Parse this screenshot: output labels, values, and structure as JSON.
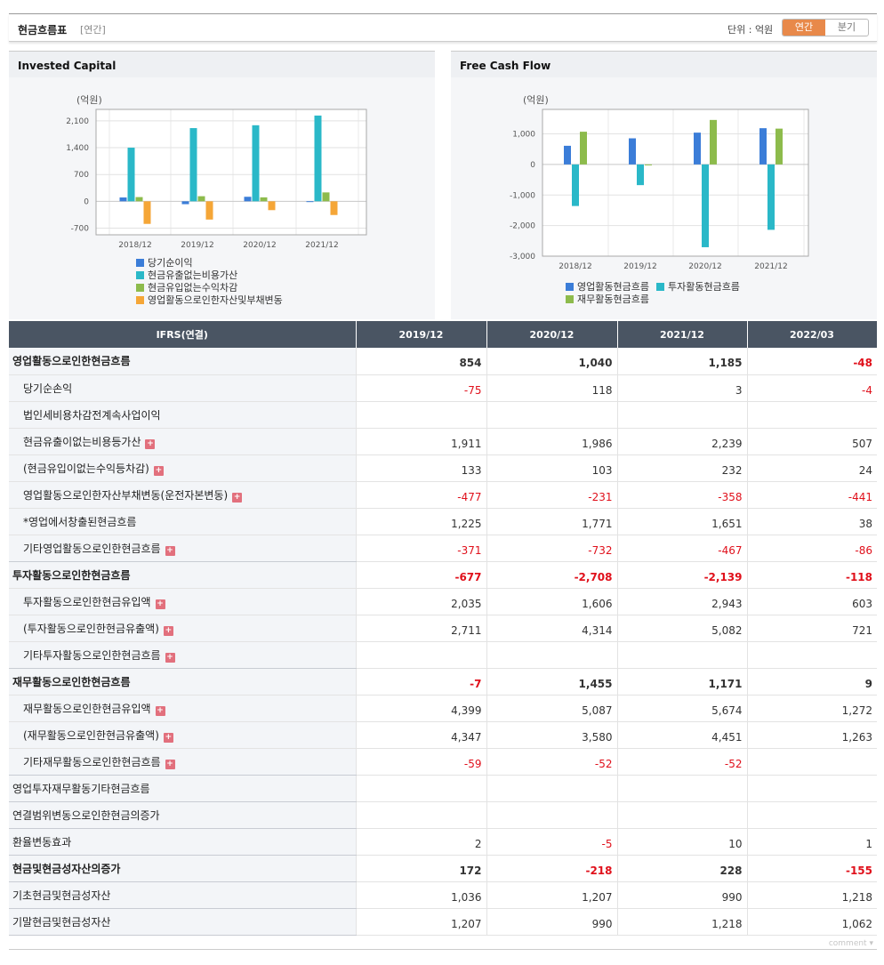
{
  "header": {
    "title": "현금흐름표",
    "subtitle": "[연간]",
    "unit": "단위 : 억원",
    "tab_annual": "연간",
    "tab_quarter": "분기"
  },
  "charts": [
    {
      "panel_title": "Invested Capital",
      "chart_data": {
        "type": "bar",
        "unit_label": "(억원)",
        "categories": [
          "2018/12",
          "2019/12",
          "2020/12",
          "2021/12"
        ],
        "ylim": [
          -875,
          2400
        ],
        "yticks": [
          -700,
          0,
          700,
          1400,
          2100
        ],
        "ytick_labels": [
          "-700",
          "0",
          "700",
          "1,400",
          "2,100"
        ],
        "grid": true,
        "legend": "bottom",
        "series": [
          {
            "name": "당기순이익",
            "color": "#3b7dd8",
            "values": [
              100,
              -75,
              118,
              3
            ]
          },
          {
            "name": "현금유출없는비용가산",
            "color": "#2ab8c8",
            "values": [
              1400,
              1911,
              1986,
              2239
            ]
          },
          {
            "name": "현금유입없는수익차감",
            "color": "#8dbb4c",
            "values": [
              110,
              133,
              103,
              232
            ]
          },
          {
            "name": "영업활동으로인한자산및부채변동",
            "color": "#f5a637",
            "values": [
              -590,
              -477,
              -231,
              -358
            ]
          }
        ]
      }
    },
    {
      "panel_title": "Free Cash Flow",
      "chart_data": {
        "type": "bar",
        "unit_label": "(억원)",
        "categories": [
          "2018/12",
          "2019/12",
          "2020/12",
          "2021/12"
        ],
        "ylim": [
          -3000,
          1800
        ],
        "yticks": [
          -3000,
          -2000,
          -1000,
          0,
          1000
        ],
        "ytick_labels": [
          "-3,000",
          "-2,000",
          "-1,000",
          "0",
          "1,000"
        ],
        "grid": true,
        "legend": "bottom",
        "series": [
          {
            "name": "영업활동현금흐름",
            "color": "#3b7dd8",
            "values": [
              610,
              854,
              1040,
              1185
            ]
          },
          {
            "name": "투자활동현금흐름",
            "color": "#2ab8c8",
            "values": [
              -1360,
              -677,
              -2708,
              -2139
            ]
          },
          {
            "name": "재무활동현금흐름",
            "color": "#8dbb4c",
            "values": [
              1070,
              -7,
              1455,
              1171
            ]
          }
        ]
      }
    }
  ],
  "table": {
    "columns": [
      "IFRS(연결)",
      "2019/12",
      "2020/12",
      "2021/12",
      "2022/03"
    ],
    "rows": [
      {
        "label": "영업활동으로인한현금흐름",
        "bold": true,
        "indent": false,
        "plus": false,
        "values": [
          "854",
          "1,040",
          "1,185",
          "-48"
        ]
      },
      {
        "label": "당기순손익",
        "bold": false,
        "indent": true,
        "plus": false,
        "values": [
          "-75",
          "118",
          "3",
          "-4"
        ]
      },
      {
        "label": "법인세비용차감전계속사업이익",
        "bold": false,
        "indent": true,
        "plus": false,
        "values": [
          "",
          "",
          "",
          ""
        ]
      },
      {
        "label": "현금유출이없는비용등가산",
        "bold": false,
        "indent": true,
        "plus": true,
        "values": [
          "1,911",
          "1,986",
          "2,239",
          "507"
        ]
      },
      {
        "label": "(현금유입이없는수익등차감)",
        "bold": false,
        "indent": true,
        "plus": true,
        "values": [
          "133",
          "103",
          "232",
          "24"
        ]
      },
      {
        "label": "영업활동으로인한자산부채변동(운전자본변동)",
        "bold": false,
        "indent": true,
        "plus": true,
        "values": [
          "-477",
          "-231",
          "-358",
          "-441"
        ]
      },
      {
        "label": "*영업에서창출된현금흐름",
        "bold": false,
        "indent": true,
        "plus": false,
        "values": [
          "1,225",
          "1,771",
          "1,651",
          "38"
        ]
      },
      {
        "label": "기타영업활동으로인한현금흐름",
        "bold": false,
        "indent": true,
        "plus": true,
        "values": [
          "-371",
          "-732",
          "-467",
          "-86"
        ]
      },
      {
        "label": "투자활동으로인한현금흐름",
        "bold": true,
        "indent": false,
        "plus": false,
        "values": [
          "-677",
          "-2,708",
          "-2,139",
          "-118"
        ]
      },
      {
        "label": "투자활동으로인한현금유입액",
        "bold": false,
        "indent": true,
        "plus": true,
        "values": [
          "2,035",
          "1,606",
          "2,943",
          "603"
        ]
      },
      {
        "label": "(투자활동으로인한현금유출액)",
        "bold": false,
        "indent": true,
        "plus": true,
        "values": [
          "2,711",
          "4,314",
          "5,082",
          "721"
        ]
      },
      {
        "label": "기타투자활동으로인한현금흐름",
        "bold": false,
        "indent": true,
        "plus": true,
        "values": [
          "",
          "",
          "",
          ""
        ]
      },
      {
        "label": "재무활동으로인한현금흐름",
        "bold": true,
        "indent": false,
        "plus": false,
        "values": [
          "-7",
          "1,455",
          "1,171",
          "9"
        ]
      },
      {
        "label": "재무활동으로인한현금유입액",
        "bold": false,
        "indent": true,
        "plus": true,
        "values": [
          "4,399",
          "5,087",
          "5,674",
          "1,272"
        ]
      },
      {
        "label": "(재무활동으로인한현금유출액)",
        "bold": false,
        "indent": true,
        "plus": true,
        "values": [
          "4,347",
          "3,580",
          "4,451",
          "1,263"
        ]
      },
      {
        "label": "기타재무활동으로인한현금흐름",
        "bold": false,
        "indent": true,
        "plus": true,
        "values": [
          "-59",
          "-52",
          "-52",
          ""
        ]
      },
      {
        "label": "영업투자재무활동기타현금흐름",
        "bold": false,
        "indent": false,
        "plus": false,
        "values": [
          "",
          "",
          "",
          ""
        ]
      },
      {
        "label": "연결범위변동으로인한현금의증가",
        "bold": false,
        "indent": false,
        "plus": false,
        "values": [
          "",
          "",
          "",
          ""
        ]
      },
      {
        "label": "환율변동효과",
        "bold": false,
        "indent": false,
        "plus": false,
        "values": [
          "2",
          "-5",
          "10",
          "1"
        ]
      },
      {
        "label": "현금및현금성자산의증가",
        "bold": true,
        "indent": false,
        "plus": false,
        "values": [
          "172",
          "-218",
          "228",
          "-155"
        ]
      },
      {
        "label": "기초현금및현금성자산",
        "bold": false,
        "indent": false,
        "plus": false,
        "values": [
          "1,036",
          "1,207",
          "990",
          "1,218"
        ]
      },
      {
        "label": "기말현금및현금성자산",
        "bold": false,
        "indent": false,
        "plus": false,
        "values": [
          "1,207",
          "990",
          "1,218",
          "1,062"
        ]
      }
    ]
  },
  "footer": {
    "comment_label": "comment",
    "comment_icon": "caret-down-icon"
  }
}
